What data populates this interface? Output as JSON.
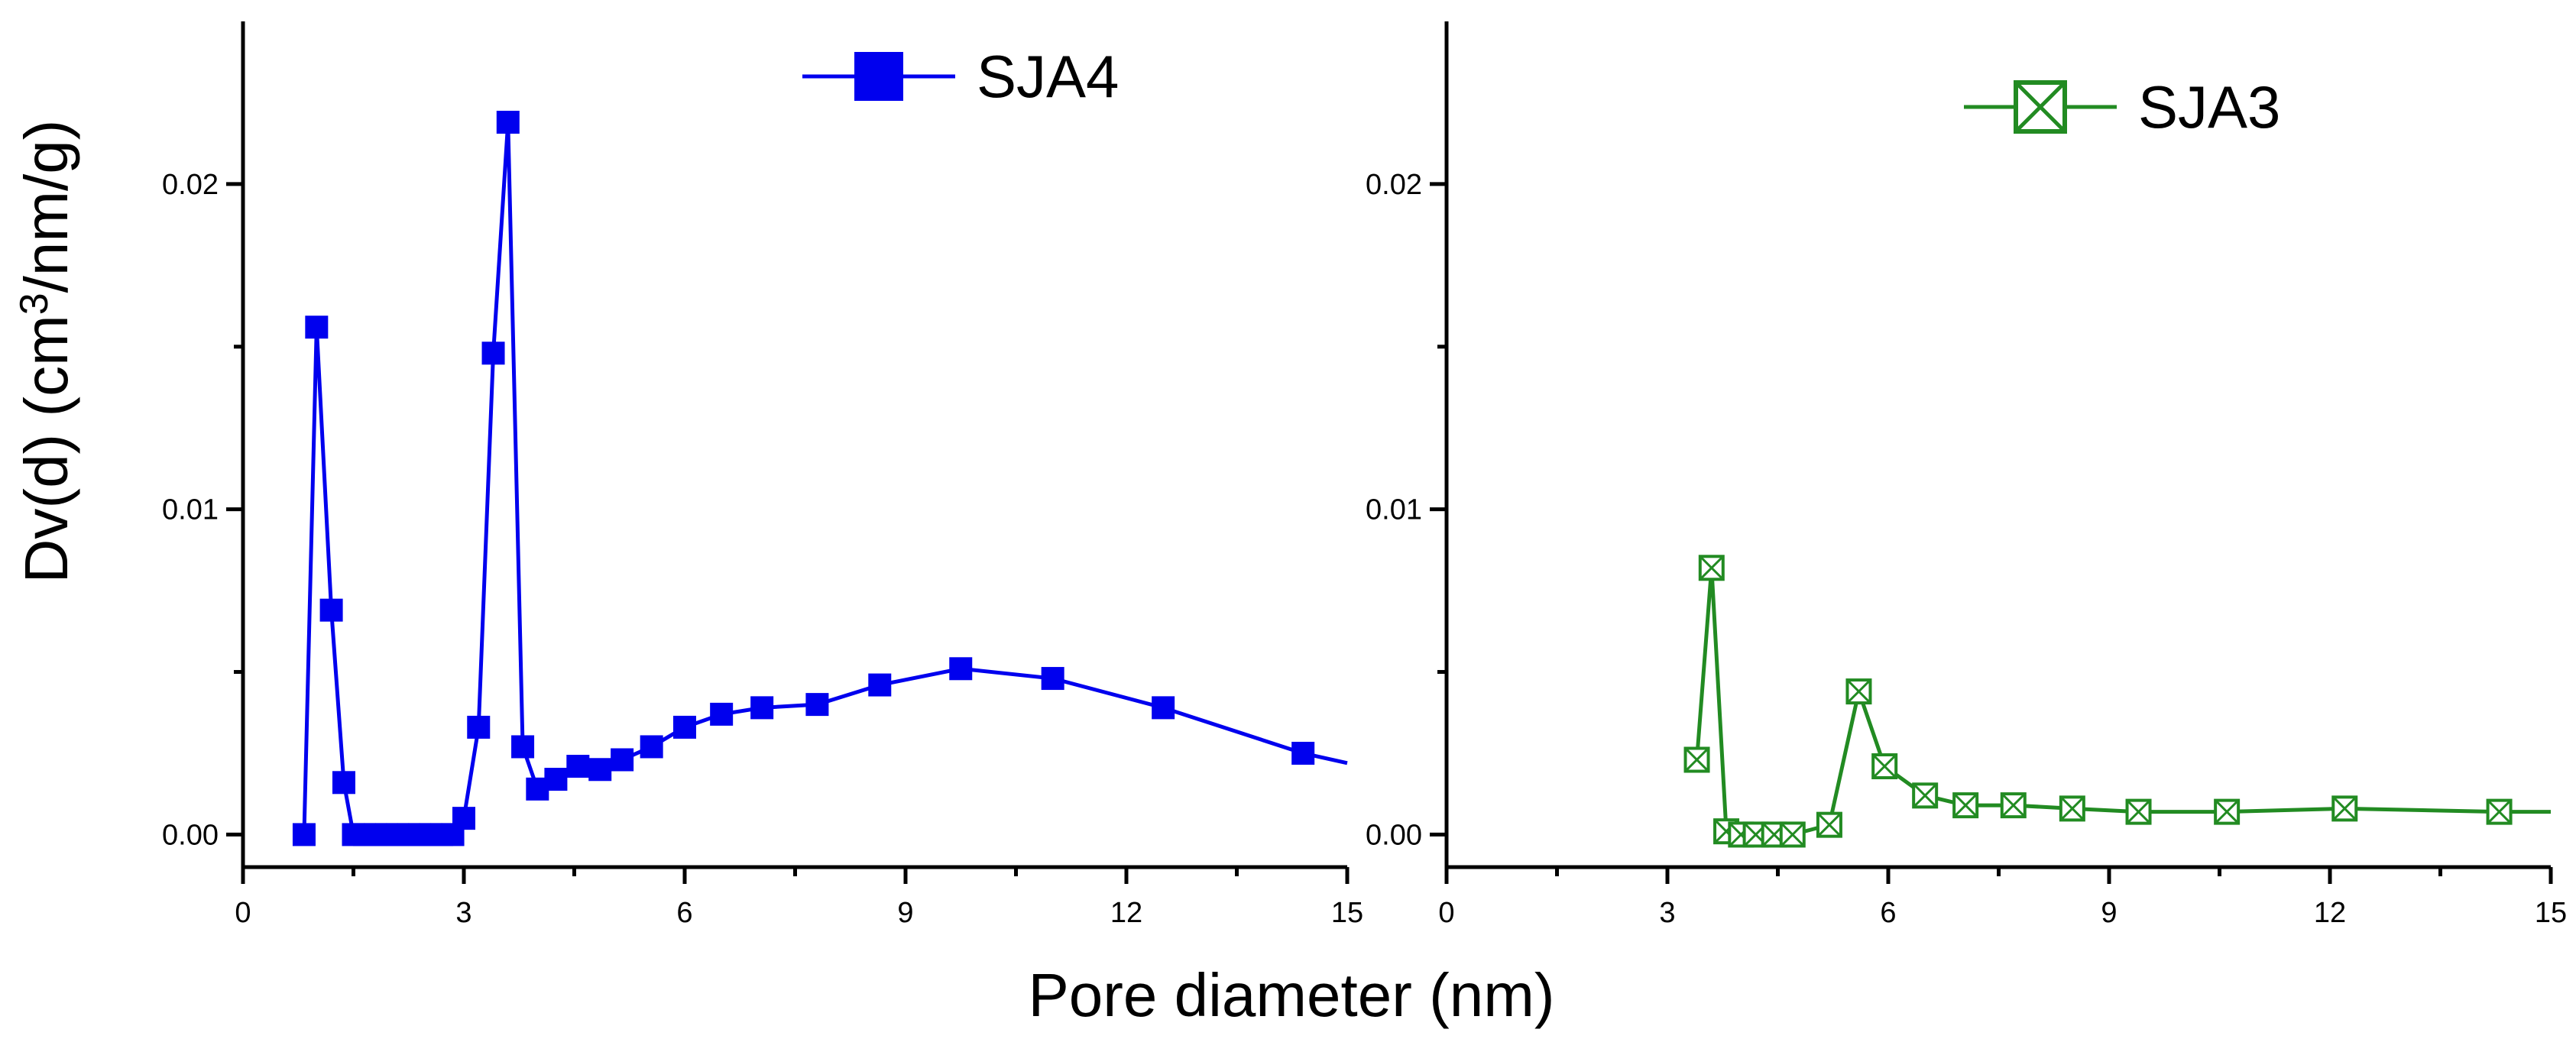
{
  "chart_data": [
    {
      "type": "line",
      "ylabel_prefix": "Dv(d) (cm",
      "ylabel_sup": "3",
      "ylabel_suffix": "/nm/g)",
      "xlim": [
        0,
        15
      ],
      "ylim": [
        -0.001,
        0.025
      ],
      "xticks": [
        0,
        3,
        6,
        9,
        12,
        15
      ],
      "xtick_labels": [
        "0",
        "3",
        "6",
        "9",
        "12",
        "15"
      ],
      "yticks": [
        0.0,
        0.01,
        0.02
      ],
      "ytick_labels": [
        "0.00",
        "0.01",
        "0.02"
      ],
      "legend_position": "top-center",
      "series": [
        {
          "name": "SJA4",
          "color": "#0000ee",
          "marker": "filled-square",
          "x": [
            0.83,
            1.0,
            1.2,
            1.37,
            1.5,
            1.65,
            1.8,
            1.95,
            2.1,
            2.25,
            2.4,
            2.55,
            2.7,
            2.85,
            3.0,
            3.2,
            3.4,
            3.6,
            3.8,
            4.0,
            4.25,
            4.55,
            4.85,
            5.15,
            5.55,
            6.0,
            6.5,
            7.05,
            7.8,
            8.65,
            9.75,
            11.0,
            12.5,
            14.4,
            15.0
          ],
          "y": [
            0.0,
            0.0156,
            0.0069,
            0.0016,
            0.0,
            0.0,
            0.0,
            0.0,
            0.0,
            0.0,
            0.0,
            0.0,
            0.0,
            0.0,
            0.0005,
            0.0033,
            0.0148,
            0.0219,
            0.0027,
            0.0014,
            0.0017,
            0.0021,
            0.002,
            0.0023,
            0.0027,
            0.0033,
            0.0037,
            0.0039,
            0.004,
            0.0046,
            0.0051,
            0.0048,
            0.0039,
            0.0025,
            0.0022
          ]
        }
      ]
    },
    {
      "type": "line",
      "xlim": [
        0,
        15
      ],
      "ylim": [
        -0.001,
        0.025
      ],
      "xticks": [
        0,
        3,
        6,
        9,
        12,
        15
      ],
      "xtick_labels": [
        "0",
        "3",
        "6",
        "9",
        "12",
        "15"
      ],
      "yticks": [
        0.0,
        0.01,
        0.02
      ],
      "ytick_labels": [
        "0.00",
        "0.01",
        "0.02"
      ],
      "legend_position": "top-right",
      "series": [
        {
          "name": "SJA3",
          "color": "#228b22",
          "marker": "boxed-x",
          "x": [
            3.4,
            3.6,
            3.8,
            4.0,
            4.2,
            4.45,
            4.7,
            5.2,
            5.6,
            5.95,
            6.5,
            7.05,
            7.7,
            8.5,
            9.4,
            10.6,
            12.2,
            14.3,
            15.0
          ],
          "y": [
            0.0023,
            0.0082,
            0.0001,
            0.0,
            0.0,
            0.0,
            0.0,
            0.0003,
            0.0044,
            0.0021,
            0.0012,
            0.0009,
            0.0009,
            0.0008,
            0.0007,
            0.0007,
            0.0008,
            0.0007,
            0.0007
          ]
        }
      ]
    }
  ],
  "xlabel": "Pore diameter (nm)"
}
